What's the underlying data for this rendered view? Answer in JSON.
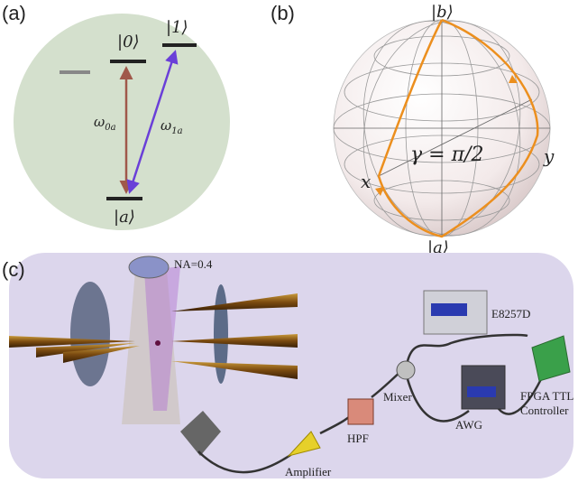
{
  "panel_a": {
    "label": "(a)",
    "ket0": "|0⟩",
    "ket1": "|1⟩",
    "ketA": "|a⟩",
    "omega0": {
      "symbol": "ω",
      "subscript": "0a"
    },
    "omega1": {
      "symbol": "ω",
      "subscript": "1a"
    }
  },
  "panel_b": {
    "label": "(b)",
    "ketB": "|b⟩",
    "ketA": "|a⟩",
    "gamma": "γ = π/2",
    "x": "x",
    "y": "y"
  },
  "panel_c": {
    "label": "(c)",
    "na": "NA=0.4",
    "source": "E8257D",
    "mixer": "Mixer",
    "hpf": "HPF",
    "awg": "AWG",
    "fpga": [
      "FPGA TTL",
      "Controller"
    ],
    "amplifier": "Amplifier"
  }
}
